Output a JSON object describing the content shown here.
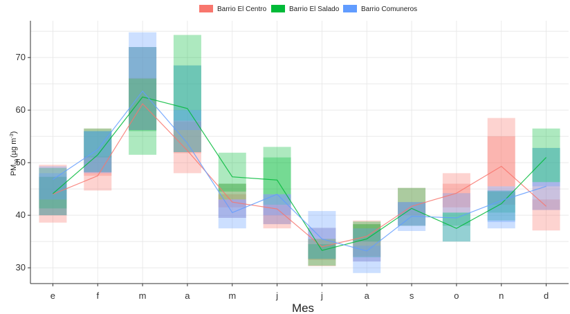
{
  "chart_data": {
    "type": "box",
    "title": "",
    "xlabel": "Mes",
    "ylabel": {
      "prefix": "PM",
      "sub": "10",
      "unit": "(µg m",
      "sup": "-3",
      "close": ")"
    },
    "categories": [
      "e",
      "f",
      "m",
      "a",
      "m",
      "j",
      "j",
      "a",
      "s",
      "o",
      "n",
      "d"
    ],
    "ylim": [
      27,
      77
    ],
    "yticks": [
      30,
      40,
      50,
      60,
      70
    ],
    "grid": true,
    "legend_position": "top",
    "series": [
      {
        "name": "Barrio El Centro",
        "color": "#F8766D",
        "lines": [
          44,
          47.5,
          61.2,
          52.3,
          42.5,
          41.2,
          34,
          36,
          41.7,
          44.2,
          49.3,
          41.7
        ],
        "boxes": [
          [
            38.6,
            40,
            41.5,
            47.3,
            49.6
          ],
          [
            44.7,
            47.5,
            48.1,
            51.2,
            56.5
          ],
          [
            56.2,
            56.2,
            61.2,
            66.1,
            72
          ],
          [
            48,
            51.8,
            52.3,
            57.8,
            58
          ],
          [
            39.5,
            41.5,
            42.5,
            44,
            46
          ],
          [
            37.5,
            38.3,
            41.2,
            42,
            44
          ],
          [
            30.3,
            31.5,
            34,
            35.5,
            37.6
          ],
          [
            31.2,
            32.2,
            36,
            38.3,
            39
          ],
          [
            38,
            40,
            41.7,
            42.5,
            45.2
          ],
          [
            40.5,
            41.5,
            44.2,
            46,
            48
          ],
          [
            42,
            45.5,
            49.3,
            55,
            58.5
          ],
          [
            37.1,
            41,
            41.7,
            43,
            46.3
          ]
        ]
      },
      {
        "name": "Barrio El Salado",
        "color": "#00BA38",
        "lines": [
          44.1,
          51.5,
          62.5,
          60.3,
          47.3,
          46.7,
          33.3,
          35.5,
          41.3,
          37.5,
          42.2,
          51
        ],
        "boxes": [
          [
            40,
            41.3,
            44.1,
            47.3,
            49
          ],
          [
            48.2,
            51,
            51.5,
            56,
            56.5
          ],
          [
            51.5,
            56,
            62.5,
            66,
            72
          ],
          [
            52,
            58,
            60.3,
            68.5,
            74.3
          ],
          [
            43,
            44.5,
            47.3,
            46,
            51.9
          ],
          [
            42,
            44,
            46.7,
            51,
            53
          ],
          [
            30.4,
            31.7,
            33.3,
            34.5,
            35.5
          ],
          [
            32,
            35,
            35.5,
            38.3,
            38.8
          ],
          [
            38,
            42.5,
            41.3,
            42.5,
            45.2
          ],
          [
            35,
            38,
            37.5,
            40.5,
            40.5
          ],
          [
            39,
            40.5,
            42.2,
            44.5,
            44.7
          ],
          [
            46.3,
            46.3,
            51,
            52.8,
            56.5
          ]
        ]
      },
      {
        "name": "Barrio Comuneros",
        "color": "#619CFF",
        "lines": [
          46.8,
          52.5,
          63.6,
          53.7,
          40.5,
          44,
          35.5,
          33.2,
          39.8,
          39.5,
          42.8,
          45.5
        ],
        "boxes": [
          [
            40,
            43,
            46.8,
            48,
            49.3
          ],
          [
            48,
            48.2,
            52.5,
            56,
            56
          ],
          [
            56.2,
            66,
            63.6,
            72,
            74.8
          ],
          [
            52,
            56.2,
            53.7,
            60,
            68.5
          ],
          [
            37.5,
            39.5,
            40.5,
            43,
            43
          ],
          [
            38.3,
            40,
            44,
            44,
            44
          ],
          [
            31.7,
            35.5,
            35.5,
            37.6,
            40.8
          ],
          [
            29,
            31.2,
            33.2,
            34.2,
            37.5
          ],
          [
            37,
            38,
            39.8,
            42.5,
            42.5
          ],
          [
            35,
            40.5,
            39.5,
            40.5,
            44.2
          ],
          [
            37.5,
            38.7,
            42.8,
            44.7,
            45.5
          ],
          [
            41,
            45.5,
            45.5,
            46.3,
            52.8
          ]
        ]
      }
    ]
  }
}
